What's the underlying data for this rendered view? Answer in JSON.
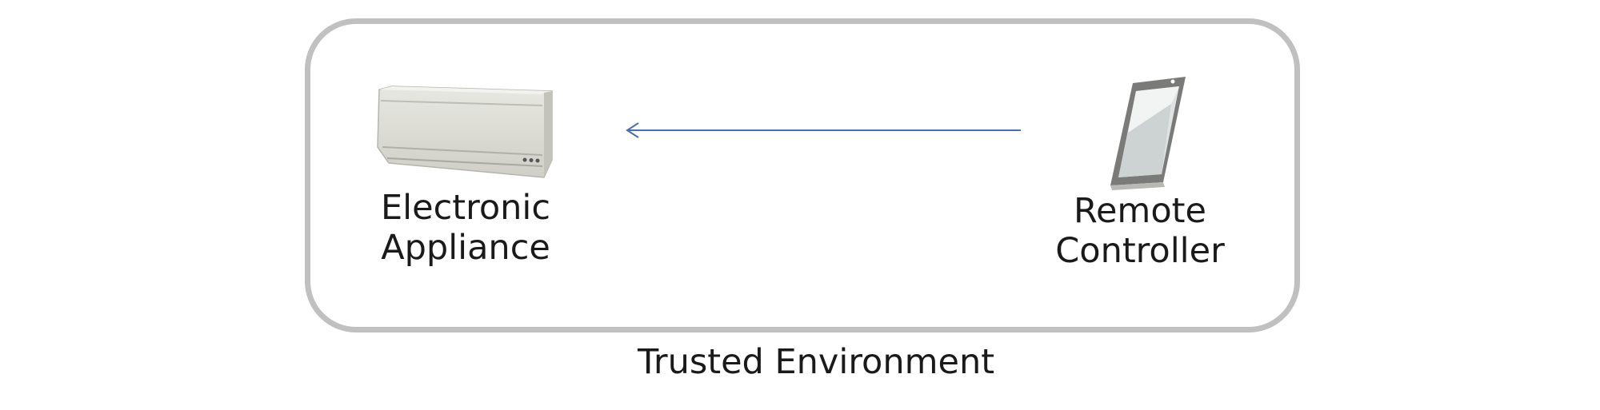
{
  "diagram": {
    "nodes": [
      {
        "id": "appliance",
        "label_lines": [
          "Electronic",
          "Appliance"
        ],
        "icon": "air-conditioner-icon"
      },
      {
        "id": "remote",
        "label_lines": [
          "Remote",
          "Controller"
        ],
        "icon": "smartphone-icon"
      }
    ],
    "edges": [
      {
        "from": "remote",
        "to": "appliance",
        "color": "#4a6fb0"
      }
    ],
    "boundary": {
      "label": "Trusted Environment",
      "border_color": "#c0c0c0"
    }
  }
}
